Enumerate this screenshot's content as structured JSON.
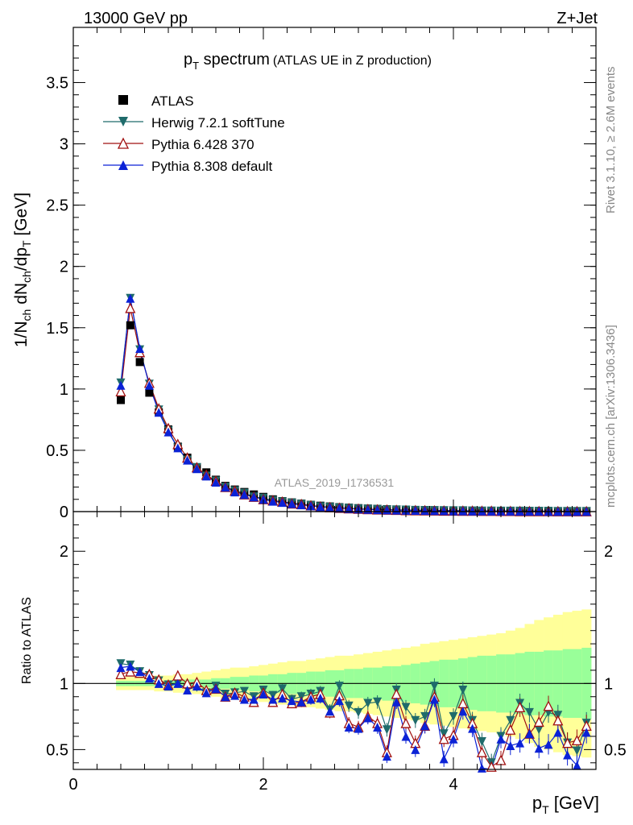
{
  "header": {
    "left": "13000 GeV pp",
    "right": "Z+Jet"
  },
  "side_labels": {
    "rivet": "Rivet 3.1.10, ≥ 2.6M events",
    "mcplots": "mcplots.cern.ch [arXiv:1306.3436]"
  },
  "analysis_id": "ATLAS_2019_I1736531",
  "chart_data": [
    {
      "type": "scatter",
      "title_main": "p",
      "title_sub": "T",
      "title_rest": " spectrum",
      "title_note": "(ATLAS UE in Z production)",
      "ylabel": "1/N_ch dN_ch/dp_T [GeV]",
      "xlabel": "p_T [GeV]",
      "xlim": [
        0,
        5.5
      ],
      "ylim": [
        0,
        3.95
      ],
      "x_ticks": [
        0,
        2,
        4
      ],
      "y_ticks": [
        "0",
        "0.5",
        "1",
        "1.5",
        "2",
        "2.5",
        "3",
        "3.5"
      ],
      "x": [
        0.5,
        0.6,
        0.7,
        0.8,
        0.9,
        1.0,
        1.1,
        1.2,
        1.3,
        1.4,
        1.5,
        1.6,
        1.7,
        1.8,
        1.9,
        2.0,
        2.1,
        2.2,
        2.3,
        2.4,
        2.5,
        2.6,
        2.7,
        2.8,
        2.9,
        3.0,
        3.1,
        3.2,
        3.3,
        3.4,
        3.5,
        3.6,
        3.7,
        3.8,
        3.9,
        4.0,
        4.1,
        4.2,
        4.3,
        4.4,
        4.5,
        4.6,
        4.7,
        4.8,
        4.9,
        5.0,
        5.1,
        5.2,
        5.3,
        5.4
      ],
      "legend": [
        "ATLAS",
        "Herwig 7.2.1 softTune",
        "Pythia 6.428 370",
        "Pythia 8.308 default"
      ],
      "series": [
        {
          "name": "ATLAS",
          "color": "#000000",
          "marker": "square",
          "values": [
            0.91,
            1.52,
            1.22,
            0.97,
            0.81,
            0.67,
            0.53,
            0.44,
            0.36,
            0.32,
            0.26,
            0.21,
            0.18,
            0.16,
            0.14,
            0.12,
            0.1,
            0.085,
            0.075,
            0.065,
            0.055,
            0.048,
            0.042,
            0.036,
            0.032,
            0.028,
            0.025,
            0.022,
            0.019,
            0.017,
            0.015,
            0.013,
            0.012,
            0.011,
            0.01,
            0.009,
            0.008,
            0.007,
            0.0065,
            0.006,
            0.0055,
            0.005,
            0.0045,
            0.004,
            0.0037,
            0.0034,
            0.0031,
            0.0028,
            0.0026,
            0.0024
          ]
        },
        {
          "name": "Herwig 7.2.1 softTune",
          "color": "#1f6b6b",
          "marker": "triangle-down",
          "values": [
            1.05,
            1.74,
            1.32,
            1.04,
            0.83,
            0.66,
            0.52,
            0.42,
            0.36,
            0.29,
            0.25,
            0.2,
            0.17,
            0.15,
            0.12,
            0.11,
            0.09,
            0.08,
            0.07,
            0.06,
            0.05,
            0.04,
            0.035,
            0.03,
            0.027,
            0.022,
            0.02,
            0.018,
            0.015,
            0.014,
            0.013,
            0.011,
            0.01,
            0.009,
            0.008,
            0.007,
            0.007,
            0.006,
            0.005,
            0.005,
            0.004,
            0.004,
            0.004,
            0.003,
            0.003,
            0.003,
            0.002,
            0.002,
            0.002,
            0.002
          ]
        },
        {
          "name": "Pythia 6.428 370",
          "color": "#a01010",
          "marker": "triangle-up-open",
          "values": [
            0.98,
            1.66,
            1.3,
            1.05,
            0.84,
            0.68,
            0.55,
            0.44,
            0.36,
            0.3,
            0.25,
            0.2,
            0.17,
            0.14,
            0.12,
            0.1,
            0.09,
            0.08,
            0.065,
            0.06,
            0.05,
            0.04,
            0.035,
            0.03,
            0.026,
            0.022,
            0.019,
            0.017,
            0.015,
            0.013,
            0.011,
            0.01,
            0.009,
            0.008,
            0.007,
            0.007,
            0.006,
            0.006,
            0.005,
            0.005,
            0.004,
            0.004,
            0.003,
            0.003,
            0.003,
            0.003,
            0.002,
            0.002,
            0.002,
            0.002
          ]
        },
        {
          "name": "Pythia 8.308 default",
          "color": "#0b22d6",
          "marker": "triangle-up",
          "values": [
            1.03,
            1.74,
            1.33,
            1.03,
            0.81,
            0.65,
            0.52,
            0.42,
            0.35,
            0.29,
            0.24,
            0.2,
            0.16,
            0.14,
            0.12,
            0.1,
            0.085,
            0.075,
            0.065,
            0.055,
            0.047,
            0.04,
            0.034,
            0.029,
            0.025,
            0.021,
            0.018,
            0.016,
            0.014,
            0.012,
            0.011,
            0.01,
            0.009,
            0.008,
            0.007,
            0.006,
            0.006,
            0.005,
            0.005,
            0.004,
            0.004,
            0.004,
            0.003,
            0.003,
            0.003,
            0.002,
            0.002,
            0.002,
            0.002,
            0.002
          ]
        }
      ]
    },
    {
      "type": "scatter",
      "ylabel": "Ratio to ATLAS",
      "ylim": [
        0.35,
        2.3
      ],
      "y_ticks": [
        "0.5",
        "1",
        "2"
      ],
      "band_colors": {
        "stat": "#99ff99",
        "total": "#ffff99"
      },
      "band_inner": [
        0.02,
        0.02,
        0.02,
        0.02,
        0.02,
        0.02,
        0.02,
        0.03,
        0.03,
        0.03,
        0.04,
        0.04,
        0.05,
        0.05,
        0.06,
        0.06,
        0.07,
        0.07,
        0.08,
        0.08,
        0.09,
        0.09,
        0.1,
        0.1,
        0.11,
        0.11,
        0.12,
        0.12,
        0.13,
        0.13,
        0.14,
        0.15,
        0.16,
        0.17,
        0.18,
        0.18,
        0.19,
        0.2,
        0.21,
        0.21,
        0.22,
        0.22,
        0.23,
        0.24,
        0.24,
        0.25,
        0.25,
        0.26,
        0.26,
        0.27
      ],
      "band_outer": [
        0.05,
        0.05,
        0.05,
        0.05,
        0.06,
        0.06,
        0.07,
        0.07,
        0.08,
        0.09,
        0.1,
        0.11,
        0.12,
        0.12,
        0.13,
        0.14,
        0.15,
        0.16,
        0.17,
        0.17,
        0.18,
        0.19,
        0.2,
        0.21,
        0.21,
        0.22,
        0.23,
        0.24,
        0.25,
        0.26,
        0.27,
        0.28,
        0.3,
        0.31,
        0.32,
        0.33,
        0.34,
        0.35,
        0.36,
        0.37,
        0.38,
        0.4,
        0.42,
        0.45,
        0.48,
        0.5,
        0.52,
        0.54,
        0.55,
        0.56
      ],
      "series": [
        {
          "name": "Herwig 7.2.1 softTune",
          "color": "#1f6b6b",
          "marker": "triangle-down",
          "values": [
            1.15,
            1.14,
            1.09,
            1.06,
            1.02,
            0.99,
            1.0,
            0.96,
            0.97,
            0.93,
            0.98,
            0.92,
            0.93,
            0.94,
            0.9,
            0.95,
            0.91,
            0.96,
            0.88,
            0.9,
            0.92,
            0.94,
            0.8,
            0.98,
            0.83,
            0.78,
            0.85,
            0.86,
            0.65,
            0.95,
            0.82,
            0.72,
            0.75,
            0.98,
            0.62,
            0.75,
            0.95,
            0.72,
            0.56,
            0.4,
            0.6,
            0.72,
            0.85,
            0.78,
            0.65,
            0.78,
            0.76,
            0.55,
            0.49,
            0.7
          ]
        },
        {
          "name": "Pythia 6.428 370",
          "color": "#a01010",
          "marker": "triangle-up-open",
          "values": [
            1.07,
            1.09,
            1.08,
            1.07,
            1.03,
            0.99,
            1.06,
            1.0,
            1.01,
            0.95,
            0.96,
            0.9,
            0.93,
            0.9,
            0.86,
            0.93,
            0.86,
            0.92,
            0.85,
            0.86,
            0.9,
            0.92,
            0.78,
            0.91,
            0.7,
            0.67,
            0.75,
            0.7,
            0.48,
            0.92,
            0.7,
            0.55,
            0.68,
            0.9,
            0.58,
            0.61,
            0.85,
            0.7,
            0.48,
            0.37,
            0.42,
            0.65,
            0.82,
            0.62,
            0.71,
            0.83,
            0.72,
            0.55,
            0.57,
            0.68
          ]
        },
        {
          "name": "Pythia 8.308 default",
          "color": "#0b22d6",
          "marker": "triangle-up",
          "values": [
            1.12,
            1.13,
            1.09,
            1.04,
            1.0,
            0.98,
            1.0,
            0.95,
            0.98,
            0.93,
            0.96,
            0.9,
            0.91,
            0.88,
            0.88,
            0.92,
            0.88,
            0.89,
            0.87,
            0.86,
            0.88,
            0.89,
            0.79,
            0.87,
            0.67,
            0.66,
            0.74,
            0.67,
            0.45,
            0.86,
            0.6,
            0.5,
            0.68,
            0.88,
            0.43,
            0.58,
            0.79,
            0.66,
            0.36,
            0.3,
            0.58,
            0.53,
            0.55,
            0.62,
            0.51,
            0.54,
            0.63,
            0.46,
            0.38,
            0.63
          ]
        }
      ]
    }
  ]
}
